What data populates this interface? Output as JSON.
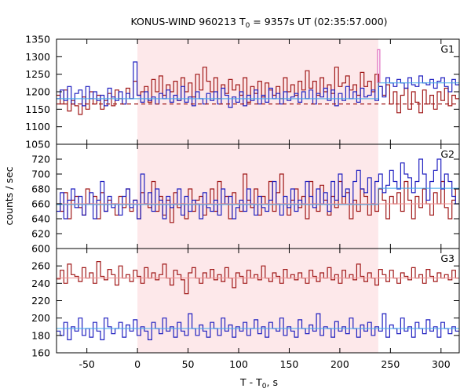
{
  "chart_data": {
    "type": "line",
    "title": {
      "main": "KONUS-WIND 960213 T",
      "sub": "0",
      "rest": " = 9357s UT (02:35:57.000)"
    },
    "ylabel": "counts / sec",
    "xlabel": {
      "main": "T - T",
      "sub": "0",
      "rest": ", s"
    },
    "xlim": [
      -80,
      318
    ],
    "xticks": [
      -50,
      0,
      50,
      100,
      150,
      200,
      250,
      300
    ],
    "shaded_interval": [
      0,
      238
    ],
    "colors": {
      "red": "#a01818",
      "blue": "#2020c0",
      "bg_red": "#ee9090",
      "bg_blue": "#40a8e8",
      "shade": "#fde8ea",
      "magenta": "#e070c0"
    },
    "panels": [
      {
        "label": "G1",
        "ylim": [
          1050,
          1350
        ],
        "yticks": [
          1050,
          1100,
          1150,
          1200,
          1250,
          1300,
          1350
        ],
        "background_red": 1165,
        "background_blue": {
          "x": [
            -80,
            238,
            238,
            318
          ],
          "y": [
            1180,
            1180,
            1225,
            1225
          ]
        },
        "spike": {
          "x": 238,
          "y": 1320
        },
        "red": [
          1190,
          1165,
          1205,
          1145,
          1175,
          1160,
          1135,
          1185,
          1150,
          1200,
          1165,
          1190,
          1150,
          1175,
          1195,
          1160,
          1205,
          1180,
          1165,
          1210,
          1180,
          1230,
          1190,
          1200,
          1215,
          1170,
          1235,
          1200,
          1245,
          1190,
          1220,
          1200,
          1230,
          1175,
          1240,
          1200,
          1225,
          1185,
          1250,
          1205,
          1270,
          1230,
          1200,
          1240,
          1180,
          1220,
          1195,
          1235,
          1205,
          1220,
          1190,
          1240,
          1170,
          1215,
          1195,
          1230,
          1185,
          1225,
          1205,
          1190,
          1215,
          1180,
          1240,
          1200,
          1220,
          1190,
          1230,
          1205,
          1260,
          1210,
          1230,
          1190,
          1240,
          1200,
          1220,
          1195,
          1270,
          1215,
          1225,
          1245,
          1205,
          1220,
          1190,
          1255,
          1215,
          1230,
          1200,
          1250,
          1215,
          1190,
          1220,
          1165,
          1200,
          1140,
          1190,
          1210,
          1150,
          1200,
          1170,
          1140,
          1205,
          1165,
          1190,
          1150,
          1200,
          1175,
          1210,
          1160,
          1190,
          1180
        ],
        "blue": [
          1180,
          1205,
          1175,
          1215,
          1165,
          1195,
          1205,
          1160,
          1215,
          1180,
          1200,
          1175,
          1190,
          1160,
          1210,
          1185,
          1175,
          1200,
          1165,
          1195,
          1180,
          1285,
          1190,
          1170,
          1200,
          1175,
          1185,
          1165,
          1195,
          1180,
          1205,
          1170,
          1190,
          1175,
          1215,
          1170,
          1185,
          1160,
          1200,
          1180,
          1165,
          1195,
          1175,
          1200,
          1165,
          1210,
          1190,
          1155,
          1185,
          1170,
          1200,
          1160,
          1190,
          1175,
          1205,
          1165,
          1190,
          1170,
          1210,
          1180,
          1195,
          1165,
          1200,
          1175,
          1185,
          1195,
          1170,
          1200,
          1180,
          1205,
          1165,
          1195,
          1185,
          1210,
          1175,
          1205,
          1160,
          1195,
          1175,
          1215,
          1180,
          1200,
          1170,
          1210,
          1185,
          1190,
          1205,
          1175,
          1215,
          1185,
          1240,
          1225,
          1215,
          1235,
          1225,
          1210,
          1240,
          1220,
          1215,
          1245,
          1225,
          1220,
          1235,
          1210,
          1230,
          1240,
          1215,
          1200,
          1235,
          1220
        ]
      },
      {
        "label": "G2",
        "ylim": [
          600,
          740
        ],
        "yticks": [
          600,
          620,
          640,
          660,
          680,
          700,
          720
        ],
        "background_red": 660,
        "background_blue": {
          "x": [
            -80,
            238,
            238,
            318
          ],
          "y": [
            659,
            659,
            681,
            681
          ]
        },
        "red": [
          660,
          650,
          675,
          640,
          665,
          670,
          655,
          645,
          680,
          660,
          670,
          640,
          675,
          650,
          665,
          660,
          645,
          670,
          655,
          680,
          650,
          665,
          640,
          675,
          660,
          655,
          690,
          650,
          670,
          645,
          665,
          635,
          675,
          655,
          660,
          640,
          680,
          650,
          665,
          670,
          645,
          660,
          680,
          650,
          690,
          660,
          670,
          640,
          675,
          660,
          650,
          700,
          665,
          655,
          680,
          645,
          670,
          660,
          690,
          650,
          675,
          700,
          660,
          645,
          665,
          680,
          655,
          670,
          640,
          690,
          660,
          650,
          685,
          665,
          645,
          670,
          655,
          690,
          660,
          675,
          640,
          665,
          650,
          680,
          670,
          645,
          660,
          650,
          680,
          665,
          640,
          670,
          660,
          675,
          650,
          690,
          665,
          640,
          670,
          655,
          680,
          660,
          645,
          675,
          660,
          690,
          655,
          640,
          665,
          680
        ],
        "blue": [
          650,
          675,
          640,
          665,
          680,
          655,
          670,
          645,
          660,
          675,
          640,
          665,
          690,
          650,
          670,
          655,
          660,
          645,
          670,
          680,
          655,
          665,
          640,
          700,
          660,
          675,
          650,
          680,
          665,
          640,
          670,
          655,
          660,
          680,
          645,
          670,
          650,
          665,
          660,
          640,
          675,
          655,
          650,
          665,
          645,
          680,
          660,
          670,
          640,
          655,
          665,
          650,
          680,
          660,
          645,
          670,
          655,
          650,
          665,
          690,
          660,
          645,
          670,
          655,
          680,
          650,
          665,
          660,
          690,
          670,
          655,
          680,
          660,
          675,
          650,
          690,
          665,
          700,
          670,
          680,
          660,
          690,
          705,
          680,
          675,
          695,
          660,
          690,
          700,
          675,
          685,
          705,
          690,
          680,
          715,
          700,
          695,
          675,
          690,
          720,
          700,
          665,
          690,
          705,
          720,
          680,
          700,
          690,
          670,
          660
        ]
      },
      {
        "label": "G3",
        "ylim": [
          160,
          280
        ],
        "yticks": [
          160,
          180,
          200,
          220,
          240,
          260
        ],
        "background_red": 246,
        "background_blue": {
          "x": [
            -80,
            318
          ],
          "y": [
            188,
            188
          ]
        },
        "red": [
          245,
          255,
          240,
          262,
          250,
          248,
          242,
          258,
          246,
          252,
          240,
          265,
          248,
          244,
          256,
          250,
          238,
          260,
          246,
          250,
          242,
          255,
          248,
          240,
          258,
          246,
          252,
          244,
          250,
          262,
          246,
          238,
          255,
          250,
          244,
          228,
          252,
          258,
          246,
          240,
          252,
          246,
          256,
          244,
          250,
          242,
          258,
          246,
          235,
          252,
          248,
          240,
          255,
          246,
          250,
          244,
          260,
          246,
          242,
          252,
          248,
          240,
          256,
          246,
          250,
          244,
          252,
          246,
          240,
          255,
          248,
          242,
          252,
          246,
          258,
          244,
          250,
          240,
          255,
          246,
          250,
          244,
          262,
          248,
          242,
          252,
          246,
          238,
          256,
          250,
          242,
          255,
          246,
          240,
          252,
          248,
          244,
          258,
          246,
          250,
          240,
          256,
          248,
          242,
          252,
          246,
          250,
          244,
          255,
          246
        ],
        "blue": [
          185,
          180,
          195,
          175,
          190,
          185,
          200,
          180,
          188,
          178,
          195,
          185,
          175,
          200,
          190,
          182,
          188,
          195,
          178,
          192,
          185,
          198,
          180,
          190,
          185,
          175,
          195,
          188,
          182,
          200,
          185,
          190,
          178,
          195,
          185,
          180,
          205,
          188,
          180,
          192,
          185,
          178,
          195,
          188,
          180,
          200,
          185,
          192,
          178,
          190,
          185,
          195,
          180,
          188,
          198,
          182,
          190,
          178,
          195,
          188,
          185,
          200,
          180,
          190,
          185,
          178,
          198,
          188,
          182,
          192,
          185,
          205,
          180,
          190,
          188,
          178,
          196,
          185,
          190,
          182,
          200,
          188,
          178,
          192,
          185,
          195,
          180,
          190,
          185,
          205,
          178,
          192,
          188,
          182,
          200,
          185,
          190,
          178,
          195,
          188,
          182,
          198,
          185,
          190,
          178,
          195,
          188,
          182,
          190,
          185
        ]
      }
    ]
  }
}
